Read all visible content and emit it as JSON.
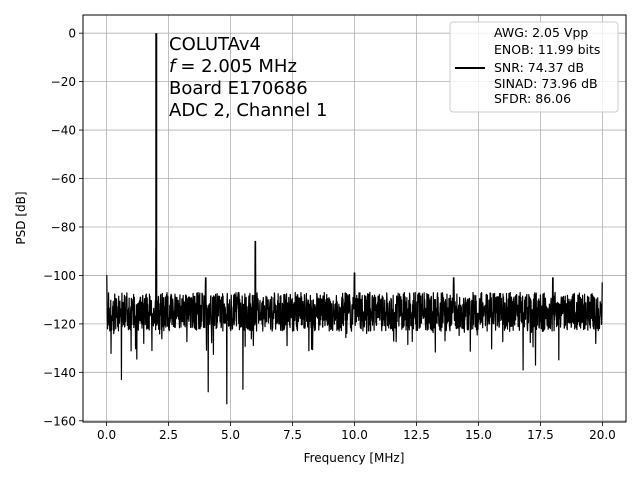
{
  "chart_data": {
    "type": "line",
    "xlabel": "Frequency [MHz]",
    "ylabel": "PSD [dB]",
    "xlim": [
      -0.95,
      20.95
    ],
    "ylim": [
      -160.5,
      7.5
    ],
    "xticks": [
      0.0,
      2.5,
      5.0,
      7.5,
      10.0,
      12.5,
      15.0,
      17.5,
      20.0
    ],
    "xtick_labels": [
      "0.0",
      "2.5",
      "5.0",
      "7.5",
      "10.0",
      "12.5",
      "15.0",
      "17.5",
      "20.0"
    ],
    "yticks": [
      0,
      -20,
      -40,
      -60,
      -80,
      -100,
      -120,
      -140,
      -160
    ],
    "ytick_labels": [
      "0",
      "−20",
      "−40",
      "−60",
      "−80",
      "−100",
      "−120",
      "−140",
      "−160"
    ],
    "grid": true,
    "line_color": "#000000",
    "noise_floor_db": -115,
    "fundamental": {
      "x": 2.005,
      "y": 0
    },
    "peaks": [
      {
        "x": 0.0,
        "y": -100
      },
      {
        "x": 2.0,
        "y": -89
      },
      {
        "x": 4.0,
        "y": -101
      },
      {
        "x": 6.0,
        "y": -86
      },
      {
        "x": 10.0,
        "y": -99
      },
      {
        "x": 14.0,
        "y": -101
      },
      {
        "x": 18.0,
        "y": -101
      },
      {
        "x": 20.0,
        "y": -103
      }
    ],
    "dips": [
      {
        "x": 0.6,
        "y": -143
      },
      {
        "x": 4.1,
        "y": -148
      },
      {
        "x": 4.85,
        "y": -153
      },
      {
        "x": 5.5,
        "y": -147
      },
      {
        "x": 16.8,
        "y": -139
      },
      {
        "x": 17.3,
        "y": -137
      }
    ],
    "annotation_lines": [
      "COLUTAv4",
      "= 2.005 MHz",
      "Board E170686",
      "ADC 2, Channel 1"
    ],
    "annotation_italic_prefix": "f",
    "legend": {
      "position": "top-right",
      "lines": [
        "AWG: 2.05 Vpp",
        "ENOB: 11.99 bits",
        "SNR: 74.37 dB",
        "SINAD: 73.96 dB",
        "SFDR: 86.06"
      ]
    }
  }
}
